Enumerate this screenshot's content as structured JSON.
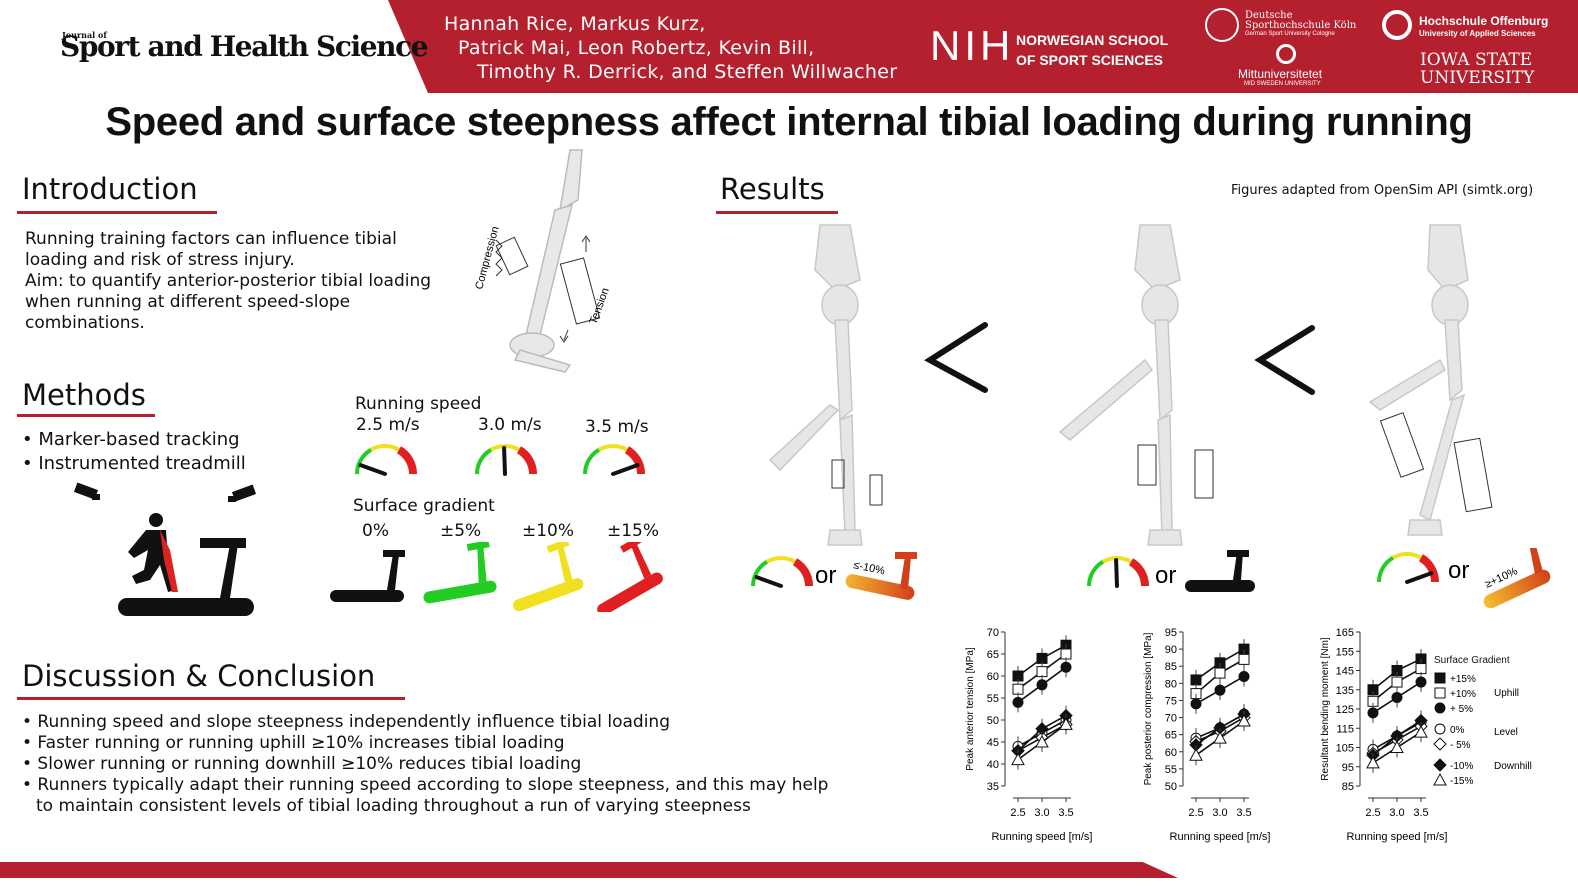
{
  "header": {
    "journal_name": "Sport and Health Science",
    "journal_of": "Journal of",
    "authors": [
      "Hannah Rice, Markus Kurz,",
      "Patrick Mai, Leon Robertz, Kevin Bill,",
      "Timothy R. Derrick, and Steffen Willwacher"
    ],
    "logos": {
      "nih_mark": "NIH",
      "nih_name_1": "NORWEGIAN SCHOOL",
      "nih_name_2": "OF SPORT SCIENCES",
      "dshs_1": "Deutsche",
      "dshs_2": "Sporthochschule Köln",
      "dshs_3": "German Sport University Cologne",
      "miun_1": "Mittuniversitetet",
      "miun_2": "MID SWEDEN UNIVERSITY",
      "hso_1": "Hochschule Offenburg",
      "hso_2": "University of Applied Sciences",
      "isu_1": "IOWA STATE",
      "isu_2": "UNIVERSITY"
    }
  },
  "title": "Speed and surface steepness affect internal tibial loading during running",
  "introduction": {
    "heading": "Introduction",
    "text": [
      "Running training factors can influence tibial",
      "loading and risk of stress injury.",
      "Aim: to quantify anterior-posterior tibial loading",
      "when running at different speed-slope",
      "combinations."
    ],
    "diagram_labels": {
      "compression": "Compression",
      "tension": "Tension"
    }
  },
  "methods": {
    "heading": "Methods",
    "bullets": [
      "• Marker-based tracking",
      "• Instrumented treadmill"
    ],
    "speed_title": "Running speed",
    "speeds": [
      "2.5 m/s",
      "3.0 m/s",
      "3.5 m/s"
    ],
    "gradient_title": "Surface gradient",
    "gradients": [
      "0%",
      "±5%",
      "±10%",
      "±15%"
    ]
  },
  "results": {
    "heading": "Results",
    "credit": "Figures adapted from OpenSim API (simtk.org)",
    "or_label": "or",
    "low_slope": "≤-10%",
    "high_slope": "≥+10%",
    "comparison": "<"
  },
  "discussion": {
    "heading": "Discussion & Conclusion",
    "bullets": [
      "• Running speed and slope steepness independently influence tibial loading",
      "• Faster running or running uphill ≥10% increases tibial loading",
      "• Slower running or running downhill ≥10% reduces tibial loading",
      "• Runners typically adapt their running speed according to slope steepness, and this may help",
      "to maintain consistent levels of tibial loading throughout a run of varying steepness"
    ]
  },
  "legend": {
    "title": "Surface Gradient",
    "items": [
      "+15%",
      "+10%",
      "+ 5%",
      "0%",
      "- 5%",
      "-10%",
      "-15%"
    ],
    "groups": [
      "Uphill",
      "Level",
      "Downhill"
    ]
  },
  "colors": {
    "brand_red": "#b5202e",
    "green": "#22cc22",
    "yellow": "#f0e020",
    "red": "#e02020"
  },
  "chart_data": [
    {
      "type": "line",
      "x": [
        2.5,
        3.0,
        3.5
      ],
      "xlabel": "Running speed [m/s]",
      "ylabel": "Peak anterior tension [MPa]",
      "ylim": [
        35,
        70
      ],
      "yticks": [
        35,
        40,
        45,
        50,
        55,
        60,
        65,
        70
      ],
      "series": [
        {
          "name": "+15%",
          "values": [
            60,
            64,
            67
          ]
        },
        {
          "name": "+10%",
          "values": [
            57,
            61,
            65
          ]
        },
        {
          "name": "+ 5%",
          "values": [
            54,
            58,
            62
          ]
        },
        {
          "name": "0%",
          "values": [
            44,
            47,
            50
          ]
        },
        {
          "name": "- 5%",
          "values": [
            43,
            46,
            49
          ]
        },
        {
          "name": "-10%",
          "values": [
            43,
            48,
            51
          ]
        },
        {
          "name": "-15%",
          "values": [
            41,
            45,
            49
          ]
        }
      ]
    },
    {
      "type": "line",
      "x": [
        2.5,
        3.0,
        3.5
      ],
      "xlabel": "Running speed [m/s]",
      "ylabel": "Peak posterior compression [MPa]",
      "ylim": [
        50,
        95
      ],
      "yticks": [
        50,
        55,
        60,
        65,
        70,
        75,
        80,
        85,
        90,
        95
      ],
      "series": [
        {
          "name": "+15%",
          "values": [
            81,
            86,
            90
          ]
        },
        {
          "name": "+10%",
          "values": [
            77,
            83,
            87
          ]
        },
        {
          "name": "+ 5%",
          "values": [
            74,
            78,
            82
          ]
        },
        {
          "name": "0%",
          "values": [
            64,
            67,
            71
          ]
        },
        {
          "name": "- 5%",
          "values": [
            63,
            66,
            70
          ]
        },
        {
          "name": "-10%",
          "values": [
            62,
            67,
            71
          ]
        },
        {
          "name": "-15%",
          "values": [
            59,
            64,
            69
          ]
        }
      ]
    },
    {
      "type": "line",
      "x": [
        2.5,
        3.0,
        3.5
      ],
      "xlabel": "Running speed [m/s]",
      "ylabel": "Resultant bending moment [Nm]",
      "ylim": [
        85,
        165
      ],
      "yticks": [
        85,
        95,
        105,
        115,
        125,
        135,
        145,
        155,
        165
      ],
      "series": [
        {
          "name": "+15%",
          "values": [
            135,
            145,
            151
          ]
        },
        {
          "name": "+10%",
          "values": [
            129,
            139,
            146
          ]
        },
        {
          "name": "+ 5%",
          "values": [
            123,
            131,
            139
          ]
        },
        {
          "name": "0%",
          "values": [
            104,
            111,
            118
          ]
        },
        {
          "name": "- 5%",
          "values": [
            102,
            109,
            116
          ]
        },
        {
          "name": "-10%",
          "values": [
            101,
            111,
            119
          ]
        },
        {
          "name": "-15%",
          "values": [
            97,
            105,
            113
          ]
        }
      ]
    }
  ]
}
